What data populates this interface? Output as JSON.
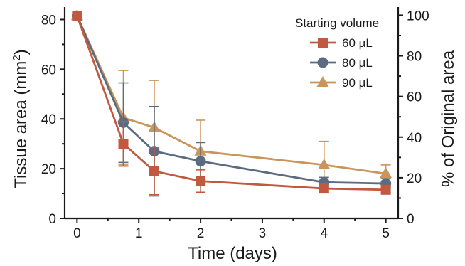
{
  "chart_data": {
    "type": "line",
    "xlabel": "Time (days)",
    "ylabel": "Tissue area (mm²)",
    "ylabel_base": "Tissue area (mm",
    "ylabel_sup": "2",
    "ylabel_end": ")",
    "y2label": "% of Original area",
    "x": [
      0,
      0.75,
      1.25,
      2,
      4,
      5
    ],
    "xlim": [
      -0.2,
      5.2
    ],
    "xticks": [
      0,
      1,
      2,
      3,
      4,
      5
    ],
    "xtick_labels": [
      "0",
      "1",
      "2",
      "3",
      "4",
      "5"
    ],
    "ylim": [
      0,
      85
    ],
    "yticks": [
      0,
      20,
      40,
      60,
      80
    ],
    "ytick_labels": [
      "0",
      "20",
      "40",
      "60",
      "80"
    ],
    "y2lim": [
      0,
      104
    ],
    "y2ticks": [
      0,
      20,
      40,
      60,
      80,
      100
    ],
    "y2tick_labels": [
      "0",
      "20",
      "40",
      "60",
      "80",
      "100"
    ],
    "legend_title": "Starting volume",
    "legend_position": "top-right",
    "grid": false,
    "series": [
      {
        "name": "90 µL",
        "color": "#C9955A",
        "marker": "triangle",
        "values": [
          81.5,
          40.5,
          36.5,
          27,
          21.5,
          18
        ],
        "errors": [
          0,
          19,
          19,
          12.5,
          9.5,
          3.5
        ]
      },
      {
        "name": "80 µL",
        "color": "#5B6B80",
        "marker": "circle",
        "values": [
          81.5,
          38.5,
          27,
          23,
          14.5,
          14
        ],
        "errors": [
          0,
          16,
          18,
          7.5,
          2,
          2
        ]
      },
      {
        "name": "60 µL",
        "color": "#C0593F",
        "marker": "square",
        "values": [
          81.5,
          30,
          19,
          15,
          12,
          11.5
        ],
        "errors": [
          0,
          9,
          9.5,
          4.5,
          1.5,
          1
        ]
      }
    ],
    "legend_order": [
      "60 µL",
      "80 µL",
      "90 µL"
    ]
  }
}
